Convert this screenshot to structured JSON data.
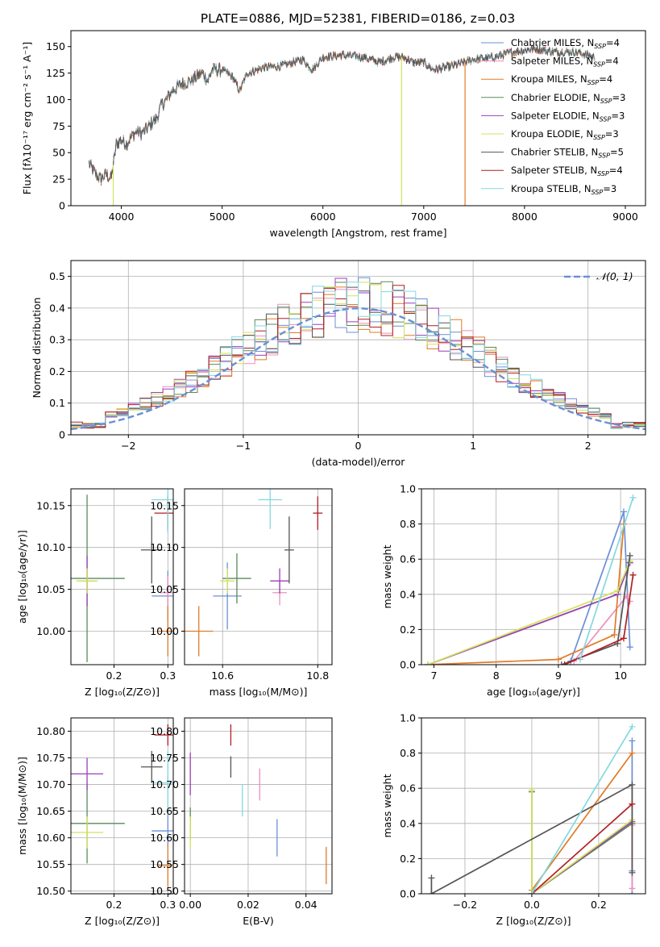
{
  "title": "PLATE=0886, MJD=52381, FIBERID=0186, z=0.03",
  "colors": {
    "Chabrier MILES": "#6b8fd6",
    "Salpeter MILES": "#ee8fbb",
    "Kroupa MILES": "#e07b27",
    "Chabrier ELODIE": "#5a8a5a",
    "Salpeter ELODIE": "#9b3fb8",
    "Kroupa ELODIE": "#d4e25a",
    "Chabrier STELIB": "#555555",
    "Salpeter STELIB": "#b21f24",
    "Kroupa STELIB": "#83d8e0"
  },
  "legend": {
    "spectrum": [
      {
        "key": "Chabrier MILES",
        "label": "Chabrier MILES, N",
        "sub": "SSP",
        "eq": "=4"
      },
      {
        "key": "Salpeter MILES",
        "label": "Salpeter MILES, N",
        "sub": "SSP",
        "eq": "=4"
      },
      {
        "key": "Kroupa MILES",
        "label": "Kroupa MILES, N",
        "sub": "SSP",
        "eq": "=4"
      },
      {
        "key": "Chabrier ELODIE",
        "label": "Chabrier ELODIE, N",
        "sub": "SSP",
        "eq": "=3"
      },
      {
        "key": "Salpeter ELODIE",
        "label": "Salpeter ELODIE, N",
        "sub": "SSP",
        "eq": "=3"
      },
      {
        "key": "Kroupa ELODIE",
        "label": "Kroupa ELODIE, N",
        "sub": "SSP",
        "eq": "=3"
      },
      {
        "key": "Chabrier STELIB",
        "label": "Chabrier STELIB, N",
        "sub": "SSP",
        "eq": "=5"
      },
      {
        "key": "Salpeter STELIB",
        "label": "Salpeter STELIB, N",
        "sub": "SSP",
        "eq": "=4"
      },
      {
        "key": "Kroupa STELIB",
        "label": "Kroupa STELIB, N",
        "sub": "SSP",
        "eq": "=3"
      }
    ],
    "normal": "𝒩(0, 1)"
  },
  "chart_data": [
    {
      "type": "line",
      "id": "spectrum",
      "xlabel": "wavelength [Angstrom, rest frame]",
      "ylabel": "Flux [fλ10⁻¹⁷ erg cm⁻² s⁻¹ A⁻¹]",
      "xlim": [
        3500,
        9200
      ],
      "ylim": [
        0,
        165
      ],
      "xticks": [
        4000,
        5000,
        6000,
        7000,
        8000,
        9000
      ],
      "yticks": [
        0,
        25,
        50,
        75,
        100,
        125,
        150
      ],
      "envelope": [
        [
          3680,
          40
        ],
        [
          3720,
          33
        ],
        [
          3760,
          28
        ],
        [
          3800,
          25
        ],
        [
          3850,
          30
        ],
        [
          3900,
          25
        ],
        [
          3950,
          58
        ],
        [
          4000,
          62
        ],
        [
          4050,
          58
        ],
        [
          4100,
          65
        ],
        [
          4150,
          70
        ],
        [
          4200,
          68
        ],
        [
          4250,
          72
        ],
        [
          4300,
          78
        ],
        [
          4350,
          82
        ],
        [
          4400,
          95
        ],
        [
          4450,
          100
        ],
        [
          4500,
          108
        ],
        [
          4600,
          115
        ],
        [
          4700,
          118
        ],
        [
          4800,
          125
        ],
        [
          4860,
          118
        ],
        [
          4900,
          128
        ],
        [
          5000,
          128
        ],
        [
          5100,
          122
        ],
        [
          5175,
          108
        ],
        [
          5250,
          125
        ],
        [
          5400,
          130
        ],
        [
          5600,
          132
        ],
        [
          5800,
          138
        ],
        [
          5893,
          128
        ],
        [
          6000,
          140
        ],
        [
          6200,
          142
        ],
        [
          6400,
          140
        ],
        [
          6563,
          135
        ],
        [
          6700,
          140
        ],
        [
          6800,
          140
        ],
        [
          6900,
          135
        ],
        [
          7000,
          135
        ],
        [
          7100,
          128
        ],
        [
          7300,
          132
        ],
        [
          7500,
          138
        ],
        [
          7700,
          140
        ],
        [
          7900,
          145
        ],
        [
          8100,
          148
        ],
        [
          8300,
          145
        ],
        [
          8500,
          145
        ],
        [
          8700,
          140
        ]
      ],
      "drops": [
        {
          "key": "Kroupa ELODIE",
          "x": 3920
        },
        {
          "key": "Kroupa ELODIE",
          "x": 6780
        },
        {
          "key": "Kroupa MILES",
          "x": 7410
        }
      ]
    },
    {
      "type": "histogram",
      "id": "residuals",
      "xlabel": "(data-model)/error",
      "ylabel": "Normed distribution",
      "xlim": [
        -2.5,
        2.5
      ],
      "ylim": [
        0,
        0.55
      ],
      "xticks": [
        -2,
        -1,
        0,
        1,
        2
      ],
      "yticks": [
        0,
        0.1,
        0.2,
        0.3,
        0.4,
        0.5
      ],
      "bin_width": 0.1,
      "bin_start": -2.5
    },
    {
      "type": "errorbar",
      "id": "age-vs-Z",
      "xlabel": "Z [log₁₀(Z/Z⊙)]",
      "ylabel": "age  [log₁₀(age/yr)]",
      "xlim": [
        0.12,
        0.31
      ],
      "ylim": [
        9.96,
        10.17
      ],
      "xticks": [
        0.2,
        0.3
      ],
      "xtick_labels": [
        "0.2",
        "0.3"
      ],
      "yticks": [
        10.0,
        10.05,
        10.1,
        10.15
      ],
      "ytick_labels": [
        "10.00",
        "10.05",
        "10.10",
        "10.15"
      ],
      "points": [
        {
          "key": "Chabrier MILES",
          "x": 0.3,
          "xerr": 0.03,
          "y": 10.042,
          "yerr": 0.03
        },
        {
          "key": "Salpeter MILES",
          "x": 0.3,
          "xerr": 0.015,
          "y": 10.046,
          "yerr": 0.02
        },
        {
          "key": "Kroupa MILES",
          "x": 0.3,
          "xerr": 0.018,
          "y": 10.0,
          "yerr": 0.03
        },
        {
          "key": "Chabrier ELODIE",
          "x": 0.15,
          "xerr": 0.07,
          "y": 10.063,
          "yerr": 0.1
        },
        {
          "key": "Salpeter ELODIE",
          "x": 0.15,
          "xerr": 0.015,
          "y": 10.06,
          "yerr": 0.03
        },
        {
          "key": "Kroupa ELODIE",
          "x": 0.15,
          "xerr": 0.02,
          "y": 10.06,
          "yerr": 0.015
        },
        {
          "key": "Chabrier STELIB",
          "x": 0.27,
          "xerr": 0.02,
          "y": 10.097,
          "yerr": 0.04
        },
        {
          "key": "Salpeter STELIB",
          "x": 0.3,
          "xerr": 0.025,
          "y": 10.141,
          "yerr": 0.02
        },
        {
          "key": "Kroupa STELIB",
          "x": 0.3,
          "xerr": 0.03,
          "y": 10.157,
          "yerr": 0.04
        }
      ]
    },
    {
      "type": "errorbar",
      "id": "age-vs-mass",
      "xlabel": "mass [log₁₀(M/M⊙)]",
      "ylabel": "",
      "xlim": [
        10.52,
        10.83
      ],
      "ylim": [
        9.96,
        10.17
      ],
      "xticks": [
        10.6,
        10.8
      ],
      "xtick_labels": [
        "10.6",
        "10.8"
      ],
      "yticks": [
        10.0,
        10.05,
        10.1,
        10.15
      ],
      "ytick_labels": [
        "10.00",
        "10.05",
        "10.10",
        "10.15"
      ],
      "points": [
        {
          "key": "Chabrier MILES",
          "x": 10.61,
          "xerr": 0.03,
          "y": 10.042,
          "yerr": 0.04
        },
        {
          "key": "Salpeter MILES",
          "x": 10.72,
          "xerr": 0.015,
          "y": 10.046,
          "yerr": 0.015
        },
        {
          "key": "Kroupa MILES",
          "x": 10.55,
          "xerr": 0.03,
          "y": 10.0,
          "yerr": 0.03
        },
        {
          "key": "Chabrier ELODIE",
          "x": 10.63,
          "xerr": 0.03,
          "y": 10.063,
          "yerr": 0.03
        },
        {
          "key": "Salpeter ELODIE",
          "x": 10.72,
          "xerr": 0.02,
          "y": 10.06,
          "yerr": 0.015
        },
        {
          "key": "Kroupa ELODIE",
          "x": 10.61,
          "xerr": 0.015,
          "y": 10.06,
          "yerr": 0.015
        },
        {
          "key": "Chabrier STELIB",
          "x": 10.74,
          "xerr": 0.01,
          "y": 10.097,
          "yerr": 0.04
        },
        {
          "key": "Salpeter STELIB",
          "x": 10.8,
          "xerr": 0.01,
          "y": 10.141,
          "yerr": 0.02
        },
        {
          "key": "Kroupa STELIB",
          "x": 10.7,
          "xerr": 0.025,
          "y": 10.157,
          "yerr": 0.035
        }
      ]
    },
    {
      "type": "line",
      "id": "weight-vs-age",
      "xlabel": "age  [log₁₀(age/yr)]",
      "ylabel": "mass weight",
      "xlim": [
        6.8,
        10.4
      ],
      "ylim": [
        0,
        1.0
      ],
      "xticks": [
        7,
        8,
        9,
        10
      ],
      "xtick_labels": [
        "7",
        "8",
        "9",
        "10"
      ],
      "yticks": [
        0,
        0.2,
        0.4,
        0.6,
        0.8,
        1.0
      ],
      "ytick_labels": [
        "0.0",
        "0.2",
        "0.4",
        "0.6",
        "0.8",
        "1.0"
      ],
      "series": [
        {
          "key": "Chabrier MILES",
          "x": [
            9.2,
            10.05,
            10.15
          ],
          "y": [
            0.02,
            0.87,
            0.1
          ]
        },
        {
          "key": "Salpeter MILES",
          "x": [
            9.25,
            10.1,
            10.15
          ],
          "y": [
            0.02,
            0.39,
            0.36
          ]
        },
        {
          "key": "Kroupa MILES",
          "x": [
            6.9,
            9.0,
            9.9,
            10.05
          ],
          "y": [
            0.0,
            0.03,
            0.17,
            0.8
          ]
        },
        {
          "key": "Chabrier ELODIE",
          "x": [
            6.9,
            9.95,
            10.15
          ],
          "y": [
            0.0,
            0.4,
            0.58
          ]
        },
        {
          "key": "Salpeter ELODIE",
          "x": [
            6.9,
            9.95,
            10.15
          ],
          "y": [
            0.0,
            0.4,
            0.58
          ]
        },
        {
          "key": "Kroupa ELODIE",
          "x": [
            6.9,
            9.95,
            10.15
          ],
          "y": [
            0.0,
            0.42,
            0.59
          ]
        },
        {
          "key": "Chabrier STELIB",
          "x": [
            9.05,
            9.95,
            10.15
          ],
          "y": [
            0.0,
            0.12,
            0.62
          ]
        },
        {
          "key": "Salpeter STELIB",
          "x": [
            9.1,
            10.05,
            10.2
          ],
          "y": [
            0.0,
            0.15,
            0.51
          ]
        },
        {
          "key": "Kroupa STELIB",
          "x": [
            9.35,
            10.2
          ],
          "y": [
            0.03,
            0.95
          ]
        }
      ]
    },
    {
      "type": "errorbar",
      "id": "mass-vs-Z",
      "xlabel": "Z [log₁₀(Z/Z⊙)]",
      "ylabel": "mass [log₁₀(M/M⊙)]",
      "xlim": [
        0.12,
        0.31
      ],
      "ylim": [
        10.495,
        10.825
      ],
      "xticks": [
        0.2,
        0.3
      ],
      "xtick_labels": [
        "0.2",
        "0.3"
      ],
      "yticks": [
        10.5,
        10.55,
        10.6,
        10.65,
        10.7,
        10.75,
        10.8
      ],
      "ytick_labels": [
        "10.50",
        "10.55",
        "10.60",
        "10.65",
        "10.70",
        "10.75",
        "10.80"
      ],
      "points": [
        {
          "key": "Chabrier MILES",
          "x": 0.3,
          "xerr": 0.03,
          "y": 10.613,
          "yerr": 0.03
        },
        {
          "key": "Salpeter MILES",
          "x": 0.3,
          "xerr": 0.015,
          "y": 10.703,
          "yerr": 0.015
        },
        {
          "key": "Kroupa MILES",
          "x": 0.3,
          "xerr": 0.018,
          "y": 10.548,
          "yerr": 0.04
        },
        {
          "key": "Chabrier ELODIE",
          "x": 0.15,
          "xerr": 0.07,
          "y": 10.627,
          "yerr": 0.075
        },
        {
          "key": "Salpeter ELODIE",
          "x": 0.15,
          "xerr": 0.03,
          "y": 10.72,
          "yerr": 0.03
        },
        {
          "key": "Kroupa ELODIE",
          "x": 0.15,
          "xerr": 0.03,
          "y": 10.61,
          "yerr": 0.03
        },
        {
          "key": "Chabrier STELIB",
          "x": 0.27,
          "xerr": 0.02,
          "y": 10.733,
          "yerr": 0.03
        },
        {
          "key": "Salpeter STELIB",
          "x": 0.3,
          "xerr": 0.025,
          "y": 10.793,
          "yerr": 0.02
        },
        {
          "key": "Kroupa STELIB",
          "x": 0.3,
          "xerr": 0.025,
          "y": 10.703,
          "yerr": 0.06
        }
      ]
    },
    {
      "type": "errorbar",
      "id": "mass-vs-EBV",
      "xlabel": "E(B-V)",
      "ylabel": "",
      "xlim": [
        -0.002,
        0.049
      ],
      "ylim": [
        10.495,
        10.825
      ],
      "xticks": [
        0.0,
        0.02,
        0.04
      ],
      "xtick_labels": [
        "0.00",
        "0.02",
        "0.04"
      ],
      "yticks": [
        10.5,
        10.55,
        10.6,
        10.65,
        10.7,
        10.75,
        10.8
      ],
      "ytick_labels": [
        "10.50",
        "10.55",
        "10.60",
        "10.65",
        "10.70",
        "10.75",
        "10.80"
      ],
      "points": [
        {
          "key": "Chabrier MILES",
          "x": 0.03,
          "xerr": 0.0,
          "y": 10.6,
          "yerr": 0.035
        },
        {
          "key": "Salpeter MILES",
          "x": 0.024,
          "xerr": 0.0,
          "y": 10.7,
          "yerr": 0.03
        },
        {
          "key": "Kroupa MILES",
          "x": 0.047,
          "xerr": 0.0,
          "y": 10.548,
          "yerr": 0.035
        },
        {
          "key": "Chabrier ELODIE",
          "x": 0.0,
          "xerr": 0.0,
          "y": 10.627,
          "yerr": 0.03
        },
        {
          "key": "Salpeter ELODIE",
          "x": 0.0,
          "xerr": 0.0,
          "y": 10.72,
          "yerr": 0.04
        },
        {
          "key": "Kroupa ELODIE",
          "x": 0.0,
          "xerr": 0.0,
          "y": 10.61,
          "yerr": 0.03
        },
        {
          "key": "Chabrier STELIB",
          "x": 0.014,
          "xerr": 0.0,
          "y": 10.733,
          "yerr": 0.02
        },
        {
          "key": "Salpeter STELIB",
          "x": 0.014,
          "xerr": 0.0,
          "y": 10.793,
          "yerr": 0.02
        },
        {
          "key": "Kroupa STELIB",
          "x": 0.018,
          "xerr": 0.0,
          "y": 10.67,
          "yerr": 0.03
        }
      ]
    },
    {
      "type": "line",
      "id": "weight-vs-Z",
      "xlabel": "Z [log₁₀(Z/Z⊙)]",
      "ylabel": "mass weight",
      "xlim": [
        -0.33,
        0.34
      ],
      "ylim": [
        0,
        1.0
      ],
      "xticks": [
        -0.2,
        0.0,
        0.2
      ],
      "xtick_labels": [
        "−0.2",
        "0.0",
        "0.2"
      ],
      "yticks": [
        0,
        0.2,
        0.4,
        0.6,
        0.8,
        1.0
      ],
      "ytick_labels": [
        "0.0",
        "0.2",
        "0.4",
        "0.6",
        "0.8",
        "1.0"
      ],
      "series": [
        {
          "key": "Chabrier MILES",
          "x": [
            0.3,
            0.3,
            0.3
          ],
          "y": [
            0.87,
            0.13,
            0.0
          ]
        },
        {
          "key": "Salpeter MILES",
          "x": [
            0.3,
            0.3
          ],
          "y": [
            0.39,
            0.03
          ]
        },
        {
          "key": "Kroupa MILES",
          "x": [
            0.0,
            0.3
          ],
          "y": [
            0.02,
            0.8
          ]
        },
        {
          "key": "Chabrier ELODIE",
          "x": [
            0.0,
            0.0,
            0.3
          ],
          "y": [
            0.58,
            0.0,
            0.4
          ]
        },
        {
          "key": "Salpeter ELODIE",
          "x": [
            0.0,
            0.3
          ],
          "y": [
            0.0,
            0.41
          ]
        },
        {
          "key": "Kroupa ELODIE",
          "x": [
            0.0,
            0.0,
            0.3
          ],
          "y": [
            0.59,
            0.0,
            0.42
          ]
        },
        {
          "key": "Chabrier STELIB",
          "x": [
            -0.3,
            -0.3,
            0.3,
            0.3
          ],
          "y": [
            0.09,
            0.0,
            0.62,
            0.12
          ]
        },
        {
          "key": "Salpeter STELIB",
          "x": [
            0.0,
            0.3
          ],
          "y": [
            0.0,
            0.51
          ]
        },
        {
          "key": "Kroupa STELIB",
          "x": [
            0.0,
            0.3
          ],
          "y": [
            0.0,
            0.95
          ]
        }
      ]
    }
  ]
}
